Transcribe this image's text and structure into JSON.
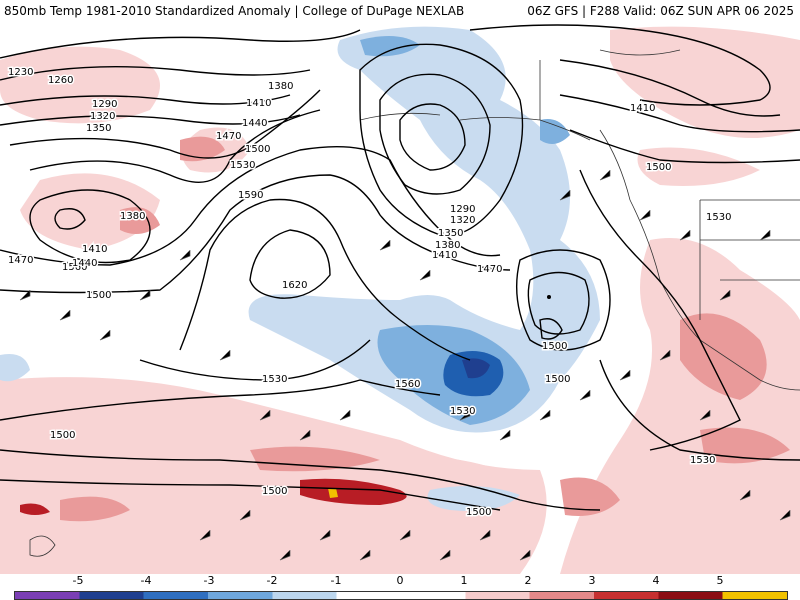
{
  "header": {
    "left": "850mb Temp 1981-2010 Standardized Anomaly | College of DuPage NEXLAB",
    "right": "06Z GFS | F288 Valid: 06Z SUN APR 06 2025"
  },
  "contour_labels": [
    "1230",
    "1260",
    "1290",
    "1320",
    "1350",
    "1380",
    "1410",
    "1440",
    "1470",
    "1500",
    "1530",
    "1590",
    "1620",
    "1560",
    "1500",
    "1470",
    "1410",
    "1380",
    "1350",
    "1320",
    "1290",
    "1560",
    "1530",
    "1500",
    "1380",
    "1410",
    "1440",
    "1470",
    "1500",
    "1530",
    "1410",
    "1500",
    "1530",
    "1530",
    "1500",
    "1500",
    "1500"
  ],
  "legend": {
    "ticks": [
      "-5",
      "-4",
      "-3",
      "-2",
      "-1",
      "0",
      "1",
      "2",
      "3",
      "4",
      "5"
    ],
    "colors": [
      "#7b3fb5",
      "#1f3f8f",
      "#2f6fc0",
      "#6fa7dc",
      "#bcd6ee",
      "#ffffff",
      "#ffffff",
      "#f6cccc",
      "#e58a8a",
      "#c73030",
      "#8b0d14",
      "#f2c200"
    ]
  },
  "colors": {
    "anomaly_neg_strong": "#1f5fb0",
    "anomaly_neg_light": "#c9dcf0",
    "anomaly_pos_light": "#f8d4d4",
    "anomaly_pos_mid": "#e99a9a",
    "anomaly_pos_strong": "#b81d25",
    "contour": "#000000"
  }
}
